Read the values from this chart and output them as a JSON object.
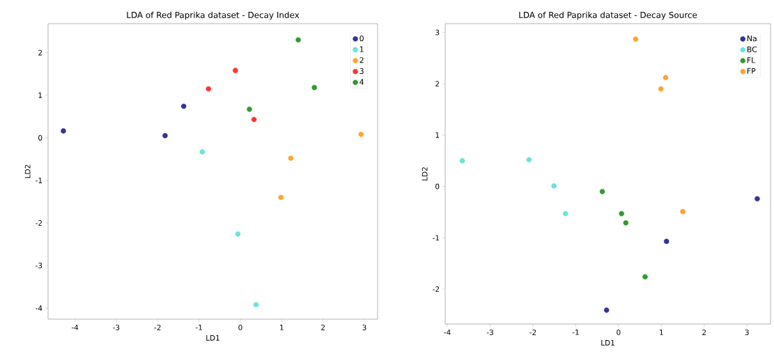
{
  "chart_data": [
    {
      "type": "scatter",
      "title": "LDA of Red Paprika dataset - Decay Index",
      "xlabel": "LD1",
      "ylabel": "LD2",
      "xlim": [
        -4.65,
        3.32
      ],
      "ylim": [
        -4.26,
        2.68
      ],
      "xticks": [
        -4,
        -3,
        -2,
        -1,
        0,
        1,
        2,
        3
      ],
      "yticks": [
        -4,
        -3,
        -2,
        -1,
        0,
        1,
        2
      ],
      "legend": "top right",
      "series": [
        {
          "name": "0",
          "color": "#333399",
          "x": [
            -4.28,
            -1.82,
            -1.37
          ],
          "values": [
            0.16,
            0.05,
            0.74
          ]
        },
        {
          "name": "1",
          "color": "#66e6d9",
          "x": [
            -0.92,
            -0.06,
            0.38
          ],
          "values": [
            -0.33,
            -2.26,
            -3.92
          ]
        },
        {
          "name": "2",
          "color": "#ffa333",
          "x": [
            2.92,
            1.22,
            0.98
          ],
          "values": [
            0.08,
            -0.48,
            -1.4
          ]
        },
        {
          "name": "3",
          "color": "#ff3333",
          "x": [
            -0.12,
            -0.77,
            0.33
          ],
          "values": [
            1.58,
            1.15,
            0.43
          ]
        },
        {
          "name": "4",
          "color": "#339933",
          "x": [
            1.4,
            1.79,
            0.22
          ],
          "values": [
            2.3,
            1.18,
            0.67
          ]
        }
      ]
    },
    {
      "type": "scatter",
      "title": "LDA of Red Paprika dataset - Decay Source",
      "xlabel": "LD1",
      "ylabel": "LD2",
      "xlim": [
        -4.05,
        3.55
      ],
      "ylim": [
        -2.68,
        3.17
      ],
      "xticks": [
        -4,
        -3,
        -2,
        -1,
        0,
        1,
        2,
        3
      ],
      "yticks": [
        -2,
        -1,
        0,
        1,
        2,
        3
      ],
      "legend": "top right",
      "series": [
        {
          "name": "Na",
          "color": "#333399",
          "x": [
            3.24,
            1.12,
            -0.28
          ],
          "values": [
            -0.24,
            -1.07,
            -2.41
          ]
        },
        {
          "name": "BC",
          "color": "#66e6d9",
          "x": [
            -3.65,
            -2.09,
            -1.51,
            -1.24
          ],
          "values": [
            0.5,
            0.52,
            0.01,
            -0.53
          ]
        },
        {
          "name": "FL",
          "color": "#339933",
          "x": [
            -0.38,
            0.07,
            0.17,
            0.62
          ],
          "values": [
            -0.1,
            -0.53,
            -0.71,
            -1.76
          ]
        },
        {
          "name": "FP",
          "color": "#ffa333",
          "x": [
            0.4,
            1.1,
            0.99,
            1.5
          ],
          "values": [
            2.87,
            2.12,
            1.9,
            -0.49
          ]
        }
      ]
    }
  ]
}
